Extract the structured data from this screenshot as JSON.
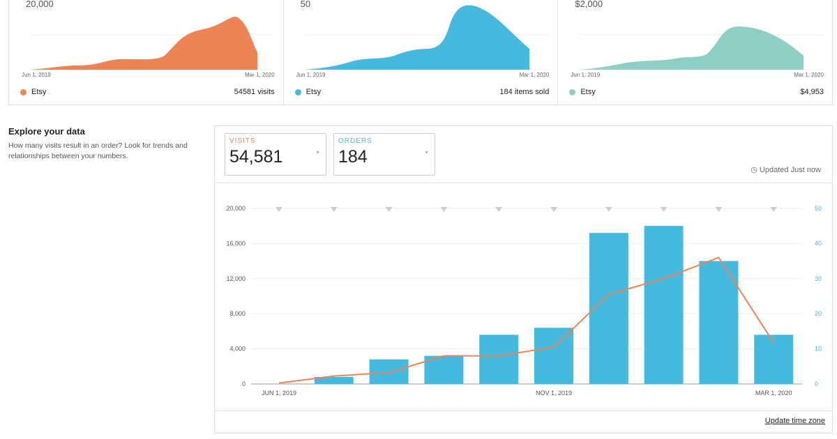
{
  "summary_cards": [
    {
      "y_max": "20,000",
      "start": "Jun 1, 2019",
      "end": "Mar 1, 2020",
      "legend": "Etsy",
      "total": "54581 visits",
      "color": "#ec8455"
    },
    {
      "y_max": "50",
      "start": "Jun 1, 2019",
      "end": "Mar 1, 2020",
      "legend": "Etsy",
      "total": "184 items sold",
      "color": "#45b9de"
    },
    {
      "y_max": "$2,000",
      "start": "Jun 1, 2019",
      "end": "Mar 1, 2020",
      "legend": "Etsy",
      "total": "$4,953",
      "color": "#8dcfc4"
    }
  ],
  "explore": {
    "title": "Explore your data",
    "description": "How many visits result in an order? Look for trends and relationships between your numbers."
  },
  "metrics": [
    {
      "label": "VISITS",
      "value": "54,581",
      "color": "#ec8455"
    },
    {
      "label": "ORDERS",
      "value": "184",
      "color": "#45b9de"
    }
  ],
  "updated": "◷ Updated Just now",
  "update_time_zone": "Update time zone",
  "chart_data": {
    "type": "bar+line",
    "left_axis": {
      "ticks": [
        "0",
        "4,000",
        "8,000",
        "12,000",
        "16,000",
        "20,000"
      ],
      "range": [
        0,
        20000
      ]
    },
    "right_axis": {
      "ticks": [
        "0",
        "10",
        "20",
        "30",
        "40",
        "50"
      ],
      "range": [
        0,
        50
      ]
    },
    "x_labels": [
      "JUN 1, 2019",
      "NOV 1, 2019",
      "MAR 1, 2020"
    ],
    "series": [
      {
        "name": "Orders",
        "type": "bar",
        "axis": "right",
        "color": "#45b9de",
        "values": [
          0,
          2,
          7,
          8,
          14,
          16,
          43,
          45,
          35,
          14
        ]
      },
      {
        "name": "Visits",
        "type": "line",
        "axis": "left",
        "color": "#ec8455",
        "values": [
          100,
          900,
          1300,
          3200,
          3200,
          4200,
          10200,
          12000,
          14400,
          4700
        ]
      }
    ]
  }
}
